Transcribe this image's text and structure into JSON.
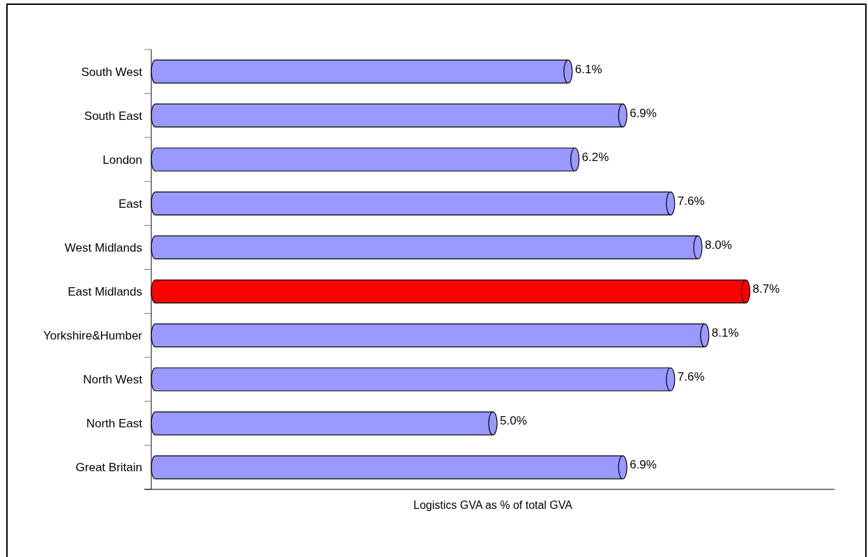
{
  "chart_data": {
    "type": "bar",
    "orientation": "horizontal",
    "categories": [
      "South West",
      "South East",
      "London",
      "East",
      "West Midlands",
      "East Midlands",
      "Yorkshire&Humber",
      "North West",
      "North East",
      "Great Britain"
    ],
    "values": [
      6.1,
      6.9,
      6.2,
      7.6,
      8.0,
      8.7,
      8.1,
      7.6,
      5.0,
      6.9
    ],
    "colors": [
      "#9999ff",
      "#9999ff",
      "#9999ff",
      "#9999ff",
      "#9999ff",
      "#ff0000",
      "#9999ff",
      "#9999ff",
      "#9999ff",
      "#9999ff"
    ],
    "value_labels": [
      "6.1%",
      "6.9%",
      "6.2%",
      "7.6%",
      "8.0%",
      "8.7%",
      "8.1%",
      "7.6%",
      "5.0%",
      "6.9%"
    ],
    "xlabel": "Logistics GVA as % of total GVA",
    "xlim": [
      0,
      10
    ],
    "tick_labels": "y"
  }
}
